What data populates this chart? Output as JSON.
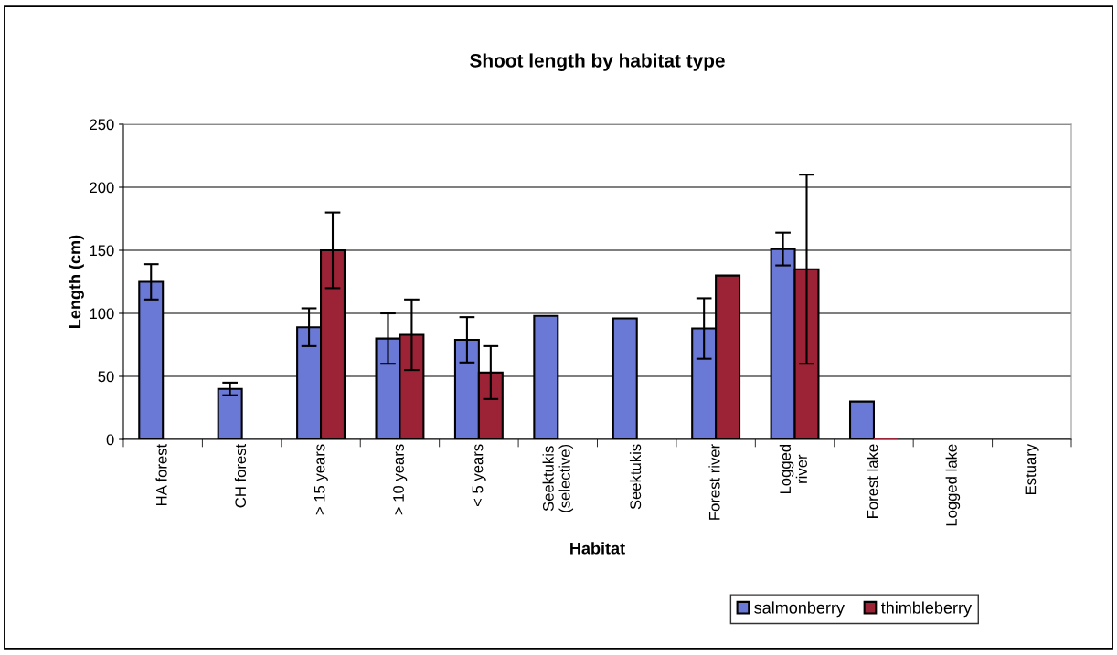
{
  "chart_data": {
    "type": "bar",
    "title": "Shoot length by habitat type",
    "xlabel": "Habitat",
    "ylabel": "Length (cm)",
    "categories": [
      "HA forest",
      "CH forest",
      "> 15 years",
      "> 10 years",
      "< 5 years",
      "Seektukis\n(selective)",
      "Seektukis",
      "Forest river",
      "Logged\nriver",
      "Forest lake",
      "Logged lake",
      "Estuary"
    ],
    "series": [
      {
        "name": "salmonberry",
        "color": "#6b79d6",
        "values": [
          125,
          40,
          89,
          80,
          79,
          98,
          96,
          88,
          151,
          30,
          null,
          null
        ],
        "errors": [
          14,
          5,
          15,
          20,
          18,
          null,
          null,
          24,
          13,
          null,
          null,
          null
        ]
      },
      {
        "name": "thimbleberry",
        "color": "#9b2335",
        "values": [
          null,
          null,
          150,
          83,
          53,
          null,
          null,
          130,
          135,
          0,
          null,
          null
        ],
        "errors": [
          null,
          null,
          30,
          28,
          21,
          null,
          null,
          null,
          75,
          null,
          null,
          null
        ]
      }
    ],
    "ylim": [
      0,
      250
    ],
    "yticks": [
      0,
      50,
      100,
      150,
      200,
      250
    ],
    "grid": "y",
    "legend": "bottom right"
  }
}
